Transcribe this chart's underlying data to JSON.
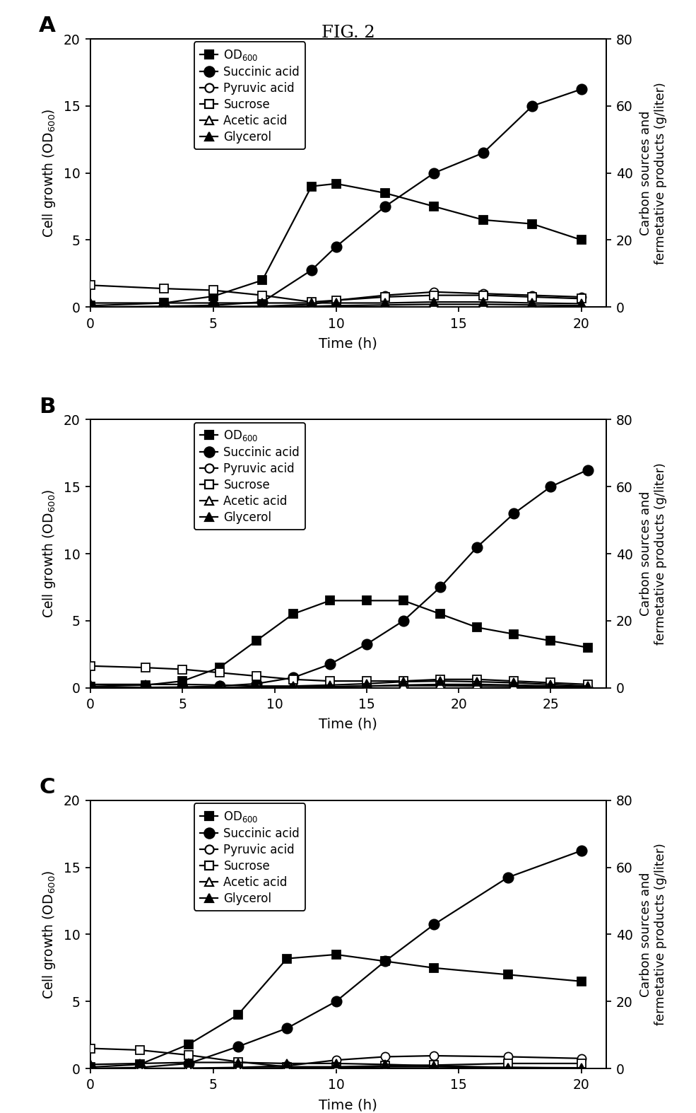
{
  "title": "FIG. 2",
  "ylabel_left": "Cell growth (OD$_{600}$)",
  "ylabel_right": "Carbon sources and\nfermetative products (g/liter)",
  "xlabel": "Time (h)",
  "ylim_left": [
    0,
    20
  ],
  "ylim_right": [
    0,
    80
  ],
  "yticks_left": [
    0,
    5,
    10,
    15,
    20
  ],
  "yticks_right": [
    0,
    20,
    40,
    60,
    80
  ],
  "A": {
    "xlim": [
      0,
      21
    ],
    "xticks": [
      0,
      5,
      10,
      15,
      20
    ],
    "OD600_x": [
      0,
      3,
      5,
      7,
      9,
      10,
      12,
      14,
      16,
      18,
      20
    ],
    "OD600_y": [
      0.1,
      0.3,
      0.8,
      2.0,
      9.0,
      9.2,
      8.5,
      7.5,
      6.5,
      6.2,
      5.0
    ],
    "succ_x": [
      0,
      3,
      5,
      7,
      9,
      10,
      12,
      14,
      16,
      18,
      20
    ],
    "succ_y": [
      0.0,
      0.2,
      0.5,
      1.5,
      11.0,
      18.0,
      30.0,
      40.0,
      46.0,
      60.0,
      65.0
    ],
    "pyru_x": [
      0,
      3,
      5,
      7,
      9,
      10,
      12,
      14,
      16,
      18,
      20
    ],
    "pyru_y": [
      0.0,
      0.0,
      0.1,
      0.2,
      0.8,
      2.0,
      3.5,
      4.5,
      4.0,
      3.5,
      3.0
    ],
    "sucro_x": [
      0,
      3,
      5,
      7,
      9,
      10,
      12,
      14,
      16,
      18,
      20
    ],
    "sucro_y": [
      6.5,
      5.5,
      5.0,
      3.5,
      1.5,
      2.0,
      3.0,
      3.5,
      3.5,
      3.0,
      2.5
    ],
    "acet_x": [
      0,
      3,
      5,
      7,
      9,
      10,
      12,
      14,
      16,
      18,
      20
    ],
    "acet_y": [
      0.0,
      0.0,
      0.0,
      0.1,
      0.2,
      0.4,
      0.6,
      0.8,
      0.8,
      0.6,
      0.4
    ],
    "glyc_x": [
      0,
      3,
      5,
      7,
      9,
      10,
      12,
      14,
      16,
      18,
      20
    ],
    "glyc_y": [
      1.2,
      1.2,
      1.2,
      1.2,
      1.2,
      1.2,
      1.2,
      1.5,
      1.5,
      1.2,
      1.0
    ]
  },
  "B": {
    "xlim": [
      0,
      28
    ],
    "xticks": [
      0,
      5,
      10,
      15,
      20,
      25
    ],
    "OD600_x": [
      0,
      3,
      5,
      7,
      9,
      11,
      13,
      15,
      17,
      19,
      21,
      23,
      25,
      27
    ],
    "OD600_y": [
      0.1,
      0.2,
      0.5,
      1.5,
      3.5,
      5.5,
      6.5,
      6.5,
      6.5,
      5.5,
      4.5,
      4.0,
      3.5,
      3.0
    ],
    "succ_x": [
      0,
      3,
      5,
      7,
      9,
      11,
      13,
      15,
      17,
      19,
      21,
      23,
      25,
      27
    ],
    "succ_y": [
      0.0,
      0.1,
      0.2,
      0.5,
      1.2,
      3.0,
      7.0,
      13.0,
      20.0,
      30.0,
      42.0,
      52.0,
      60.0,
      65.0
    ],
    "pyru_x": [
      0,
      3,
      5,
      7,
      9,
      11,
      13,
      15,
      17,
      19,
      21,
      23,
      25,
      27
    ],
    "pyru_y": [
      0.0,
      0.0,
      0.0,
      0.0,
      0.1,
      0.2,
      0.3,
      0.5,
      0.6,
      0.6,
      0.5,
      0.4,
      0.3,
      0.2
    ],
    "sucro_x": [
      0,
      3,
      5,
      7,
      9,
      11,
      13,
      15,
      17,
      19,
      21,
      23,
      25,
      27
    ],
    "sucro_y": [
      6.5,
      6.0,
      5.5,
      4.5,
      3.5,
      2.5,
      2.0,
      2.0,
      2.0,
      2.5,
      2.5,
      2.0,
      1.5,
      1.0
    ],
    "acet_x": [
      0,
      3,
      5,
      7,
      9,
      11,
      13,
      15,
      17,
      19,
      21,
      23,
      25,
      27
    ],
    "acet_y": [
      0.0,
      0.0,
      0.0,
      0.0,
      0.1,
      0.2,
      0.3,
      0.5,
      0.8,
      1.0,
      1.0,
      0.8,
      0.5,
      0.3
    ],
    "glyc_x": [
      0,
      3,
      5,
      7,
      9,
      11,
      13,
      15,
      17,
      19,
      21,
      23,
      25,
      27
    ],
    "glyc_y": [
      1.0,
      1.0,
      1.0,
      0.8,
      0.5,
      0.5,
      0.8,
      1.2,
      1.8,
      2.0,
      1.8,
      1.5,
      1.0,
      0.5
    ]
  },
  "C": {
    "xlim": [
      0,
      21
    ],
    "xticks": [
      0,
      5,
      10,
      15,
      20
    ],
    "OD600_x": [
      0,
      2,
      4,
      6,
      8,
      10,
      12,
      14,
      17,
      20
    ],
    "OD600_y": [
      0.1,
      0.3,
      1.8,
      4.0,
      8.2,
      8.5,
      8.0,
      7.5,
      7.0,
      6.5
    ],
    "succ_x": [
      0,
      2,
      4,
      6,
      8,
      10,
      12,
      14,
      17,
      20
    ],
    "succ_y": [
      0.0,
      0.3,
      1.5,
      6.5,
      12.0,
      20.0,
      32.0,
      43.0,
      57.0,
      65.0
    ],
    "pyru_x": [
      0,
      2,
      4,
      6,
      8,
      10,
      12,
      14,
      17,
      20
    ],
    "pyru_y": [
      0.0,
      0.0,
      0.1,
      0.3,
      0.8,
      2.5,
      3.5,
      3.8,
      3.5,
      3.0
    ],
    "sucro_x": [
      0,
      2,
      4,
      6,
      8,
      10,
      12,
      14,
      17,
      20
    ],
    "sucro_y": [
      6.0,
      5.5,
      4.0,
      2.0,
      0.5,
      0.5,
      0.8,
      1.0,
      1.5,
      1.5
    ],
    "acet_x": [
      0,
      2,
      4,
      6,
      8,
      10,
      12,
      14,
      17,
      20
    ],
    "acet_y": [
      0.0,
      0.0,
      0.0,
      0.1,
      0.2,
      0.3,
      0.5,
      0.5,
      0.3,
      0.2
    ],
    "glyc_x": [
      0,
      2,
      4,
      6,
      8,
      10,
      12,
      14,
      17,
      20
    ],
    "glyc_y": [
      1.2,
      1.5,
      1.8,
      1.8,
      1.5,
      1.5,
      1.2,
      0.8,
      0.3,
      0.1
    ]
  }
}
